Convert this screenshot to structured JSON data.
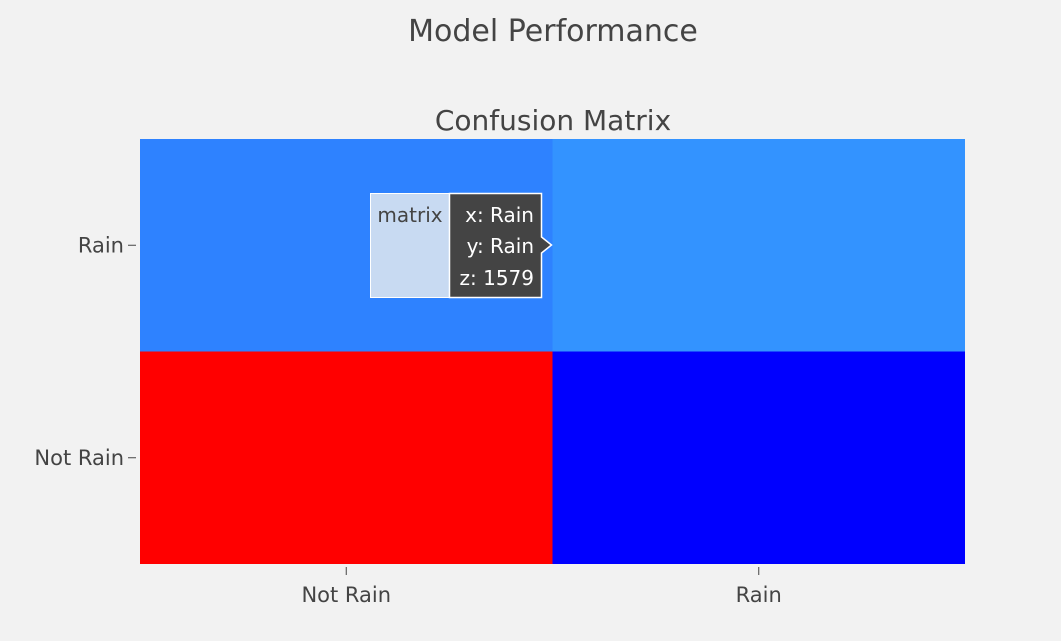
{
  "page_title": "Model Performance",
  "colors": {
    "background": "#f2f2f2",
    "text": "#444444",
    "tooltip_bg": "#444444",
    "tooltip_label_bg": "#c8daf2"
  },
  "chart_data": {
    "type": "heatmap",
    "title": "Confusion Matrix",
    "x_categories": [
      "Not Rain",
      "Rain"
    ],
    "y_categories": [
      "Not Rain",
      "Rain"
    ],
    "cell_colors": [
      [
        "#ff0000",
        "#0000ff"
      ],
      [
        "#2e82ff",
        "#3393ff"
      ]
    ],
    "hover": {
      "trace_name": "matrix",
      "x_line": "x: Rain",
      "y_line": "y: Rain",
      "z_line": "z: 1579"
    }
  }
}
